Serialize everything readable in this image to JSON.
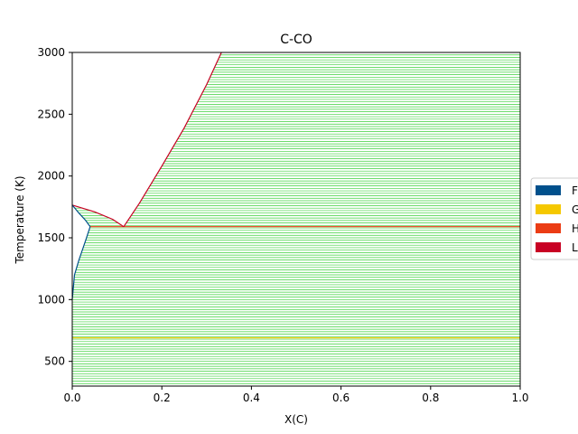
{
  "chart_data": {
    "type": "phase_diagram",
    "title": "C-CO",
    "xlabel": "X(C)",
    "ylabel": "Temperature (K)",
    "xlim": [
      0.0,
      1.0
    ],
    "ylim": [
      300,
      3000
    ],
    "xticks": [
      "0.0",
      "0.2",
      "0.4",
      "0.6",
      "0.8",
      "1.0"
    ],
    "yticks": [
      "500",
      "1000",
      "1500",
      "2000",
      "2500",
      "3000"
    ],
    "legend": {
      "placement": "right",
      "entries": [
        {
          "label": "F",
          "color": "#00508C"
        },
        {
          "label": "G",
          "color": "#F5C800"
        },
        {
          "label": "H",
          "color": "#EB3C14"
        },
        {
          "label": "L",
          "color": "#C80023"
        }
      ]
    },
    "tie_line_color": "#3BD13B",
    "two_phase_region": {
      "x_start": 0.0,
      "x_end": 1.0,
      "t_min": 300,
      "t_max": 3000,
      "tie_line_step_K": 20
    },
    "invariants": [
      {
        "temperature": 1590,
        "x_from": 0.04,
        "x_to": 1.0,
        "color": "#EB3C14"
      },
      {
        "temperature": 690,
        "x_from": 0.0,
        "x_to": 1.0,
        "color": "#F5C800"
      }
    ],
    "boundaries": [
      {
        "name": "liquidus",
        "color": "#C80023",
        "points": [
          [
            0.115,
            1590
          ],
          [
            0.15,
            1780
          ],
          [
            0.2,
            2080
          ],
          [
            0.25,
            2390
          ],
          [
            0.3,
            2740
          ],
          [
            0.333,
            3000
          ]
        ]
      },
      {
        "name": "upper_liquid",
        "color": "#C80023",
        "points": [
          [
            0.0,
            1765
          ],
          [
            0.05,
            1710
          ],
          [
            0.09,
            1650
          ],
          [
            0.115,
            1590
          ]
        ]
      },
      {
        "name": "F_solvus",
        "color": "#00508C",
        "points": [
          [
            0.0,
            1000
          ],
          [
            0.005,
            1200
          ],
          [
            0.015,
            1320
          ],
          [
            0.03,
            1480
          ],
          [
            0.04,
            1590
          ]
        ]
      },
      {
        "name": "F_upper",
        "color": "#00508C",
        "points": [
          [
            0.0,
            1765
          ],
          [
            0.015,
            1700
          ],
          [
            0.03,
            1640
          ],
          [
            0.04,
            1590
          ]
        ]
      }
    ]
  }
}
